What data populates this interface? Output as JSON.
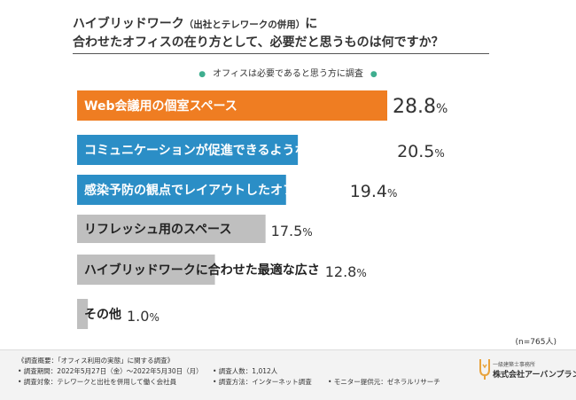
{
  "title": {
    "line1_main": "ハイブリッドワーク",
    "line1_paren": "（出社とテレワークの併用）",
    "line1_end": "に",
    "line2": "合わせたオフィスの在り方として、必要だと思うものは何ですか？"
  },
  "subtitle": "オフィスは必要であると思う方に調査",
  "sample_size": "(n=765人)",
  "colors": {
    "orange": "#ef7d22",
    "blue": "#2b8ec6",
    "gray": "#bfbfbf",
    "value_text": "#333333",
    "accent_dot": "#3fae8f"
  },
  "chart_data": {
    "type": "bar",
    "orientation": "horizontal",
    "unit": "%",
    "xlim": [
      0,
      28.8
    ],
    "categories": [
      "Web会議用の個室スペース",
      "コミュニケーションが促進できるようなフリースペース",
      "感染予防の観点でレイアウトしたオフィス空間",
      "リフレッシュ用のスペース",
      "ハイブリッドワークに合わせた最適な広さ",
      "その他"
    ],
    "values": [
      28.8,
      20.5,
      19.4,
      17.5,
      12.8,
      1.0
    ],
    "value_labels": [
      "28.8",
      "20.5",
      "19.4",
      "17.5",
      "12.8",
      "1.0"
    ],
    "percent_sign": "%",
    "bar_colors": [
      "orange",
      "blue",
      "blue",
      "gray",
      "gray",
      "gray"
    ]
  },
  "footer": {
    "heading": "《調査概要：「オフィス利用の実態」に関する調査》",
    "period": "• 調査期間：2022年5月27日（金）〜2022年5月30日（月）",
    "count": "• 調査人数：1,012人",
    "target": "• 調査対象：テレワークと出社を併用して働く会社員",
    "method": "• 調査方法：インターネット調査",
    "monitor": "• モニター提供元：ゼネラルリサーチ"
  },
  "logo": {
    "top_text": "一級建築士事務所",
    "company": "株式会社アーバンプラン"
  }
}
